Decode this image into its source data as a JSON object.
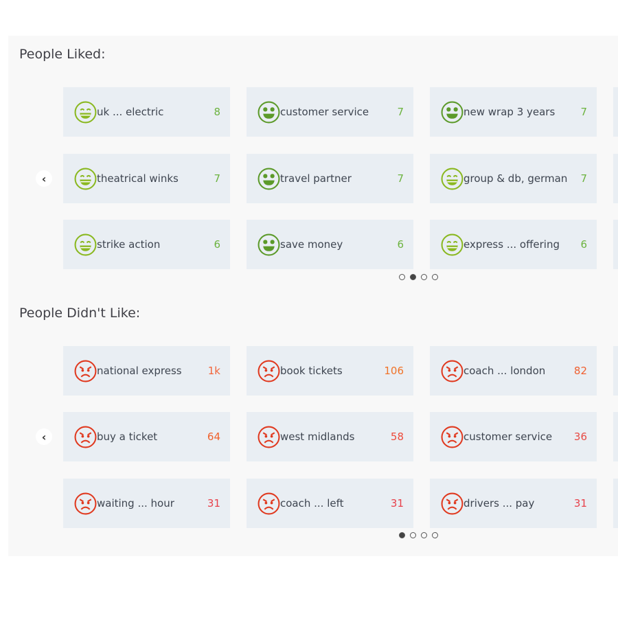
{
  "liked": {
    "title": "People Liked:",
    "active_page": 1,
    "pages": 4,
    "icon_colors": {
      "grin": "#8ab820",
      "heart-eyes": "#5c9a2a"
    },
    "count_color": "#6cb33f",
    "items": [
      {
        "label": "uk ... electric",
        "count": "8",
        "icon": "grin"
      },
      {
        "label": "customer service",
        "count": "7",
        "icon": "heart-eyes"
      },
      {
        "label": "new wrap 3 years",
        "count": "7",
        "icon": "heart-eyes"
      },
      {
        "label": "theatrical winks",
        "count": "7",
        "icon": "grin"
      },
      {
        "label": "travel partner",
        "count": "7",
        "icon": "heart-eyes"
      },
      {
        "label": "group & db, german",
        "count": "7",
        "icon": "grin"
      },
      {
        "label": "strike action",
        "count": "6",
        "icon": "grin"
      },
      {
        "label": "save money",
        "count": "6",
        "icon": "heart-eyes"
      },
      {
        "label": "express ... offering",
        "count": "6",
        "icon": "grin"
      }
    ]
  },
  "disliked": {
    "title": "People Didn't Like:",
    "active_page": 0,
    "pages": 4,
    "icon_color": "#e0391f",
    "items": [
      {
        "label": "national express",
        "count": "1k",
        "icon": "angry",
        "color": "#f2653a"
      },
      {
        "label": "book tickets",
        "count": "106",
        "icon": "angry",
        "color": "#f07328"
      },
      {
        "label": "coach ... london",
        "count": "82",
        "icon": "angry",
        "color": "#f06030"
      },
      {
        "label": "buy a ticket",
        "count": "64",
        "icon": "angry",
        "color": "#f0602a"
      },
      {
        "label": "west midlands",
        "count": "58",
        "icon": "angry",
        "color": "#ee4a3a"
      },
      {
        "label": "customer service",
        "count": "36",
        "icon": "angry",
        "color": "#e84a44"
      },
      {
        "label": "waiting ... hour",
        "count": "31",
        "icon": "angry",
        "color": "#e8404a"
      },
      {
        "label": "coach ... left",
        "count": "31",
        "icon": "angry",
        "color": "#e8404a"
      },
      {
        "label": "drivers ... pay",
        "count": "31",
        "icon": "angry",
        "color": "#e8404a"
      }
    ]
  }
}
